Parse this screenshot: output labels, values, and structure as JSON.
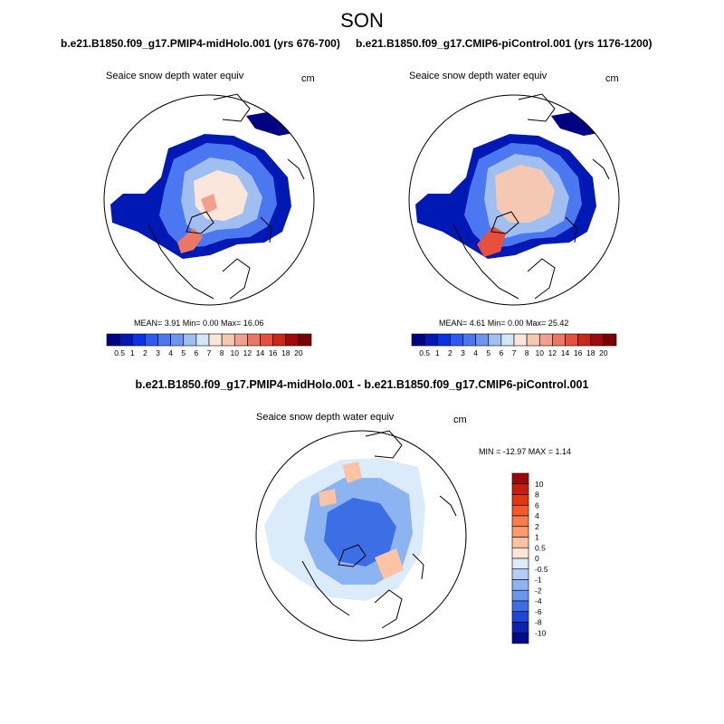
{
  "figure": {
    "season": "SON",
    "left_header": "b.e21.B1850.f09_g17.PMIP4-midHolo.001 (yrs 676-700)",
    "right_header": "b.e21.B1850.f09_g17.CMIP6-piControl.001 (yrs 1176-1200)",
    "diff_header": "b.e21.B1850.f09_g17.PMIP4-midHolo.001 - b.e21.B1850.f09_g17.CMIP6-piControl.001",
    "variable_label": "Seaice snow depth water equiv",
    "unit": "cm"
  },
  "panels": {
    "left": {
      "stats": "MEAN=   3.91  Min=    0.00  Max=  16.06"
    },
    "right": {
      "stats": "MEAN=   4.61  Min=    0.00  Max=  25.42"
    },
    "diff": {
      "minmax": "MIN = -12.97 MAX =   1.14"
    }
  },
  "chart_data": [
    {
      "type": "heatmap",
      "projection": "north-polar-stereographic",
      "title": "Seaice snow depth water equiv",
      "case": "b.e21.B1850.f09_g17.PMIP4-midHolo.001 (yrs 676-700)",
      "units": "cm",
      "mean": 3.91,
      "min": 0.0,
      "max": 16.06,
      "colorbar_levels": [
        "0.5",
        "1",
        "2",
        "3",
        "4",
        "5",
        "6",
        "7",
        "8",
        "10",
        "12",
        "14",
        "16",
        "18",
        "20"
      ],
      "colorbar_colors": [
        "#000082",
        "#0019b4",
        "#0a32e6",
        "#2d5af0",
        "#4b78f0",
        "#6e96f0",
        "#a0bef0",
        "#d2e6f5",
        "#fbe6dc",
        "#f5c8b4",
        "#f0a08c",
        "#eb7864",
        "#e6503c",
        "#c82814",
        "#a00a0a",
        "#780000"
      ]
    },
    {
      "type": "heatmap",
      "projection": "north-polar-stereographic",
      "title": "Seaice snow depth water equiv",
      "case": "b.e21.B1850.f09_g17.CMIP6-piControl.001 (yrs 1176-1200)",
      "units": "cm",
      "mean": 4.61,
      "min": 0.0,
      "max": 25.42,
      "colorbar_levels": [
        "0.5",
        "1",
        "2",
        "3",
        "4",
        "5",
        "6",
        "7",
        "8",
        "10",
        "12",
        "14",
        "16",
        "18",
        "20"
      ],
      "colorbar_colors": [
        "#000082",
        "#0019b4",
        "#0a32e6",
        "#2d5af0",
        "#4b78f0",
        "#6e96f0",
        "#a0bef0",
        "#d2e6f5",
        "#fbe6dc",
        "#f5c8b4",
        "#f0a08c",
        "#eb7864",
        "#e6503c",
        "#c82814",
        "#a00a0a",
        "#780000"
      ]
    },
    {
      "type": "heatmap",
      "projection": "north-polar-stereographic",
      "title": "Seaice snow depth water equiv",
      "case": "b.e21.B1850.f09_g17.PMIP4-midHolo.001 - b.e21.B1850.f09_g17.CMIP6-piControl.001",
      "units": "cm",
      "min": -12.97,
      "max": 1.14,
      "colorbar_levels": [
        "10",
        "8",
        "6",
        "4",
        "2",
        "1",
        "0.5",
        "0",
        "-0.5",
        "-1",
        "-2",
        "-4",
        "-6",
        "-8",
        "-10"
      ],
      "colorbar_colors": [
        "#9b0a0a",
        "#c31e0f",
        "#e1370f",
        "#f05a2d",
        "#f57d50",
        "#fa9b6e",
        "#fcc3a5",
        "#fde6d7",
        "#dcebfa",
        "#b4cdf5",
        "#8cb4f0",
        "#6996eb",
        "#3c6ee6",
        "#1e46d2",
        "#0a23b4",
        "#000a8c"
      ]
    }
  ]
}
